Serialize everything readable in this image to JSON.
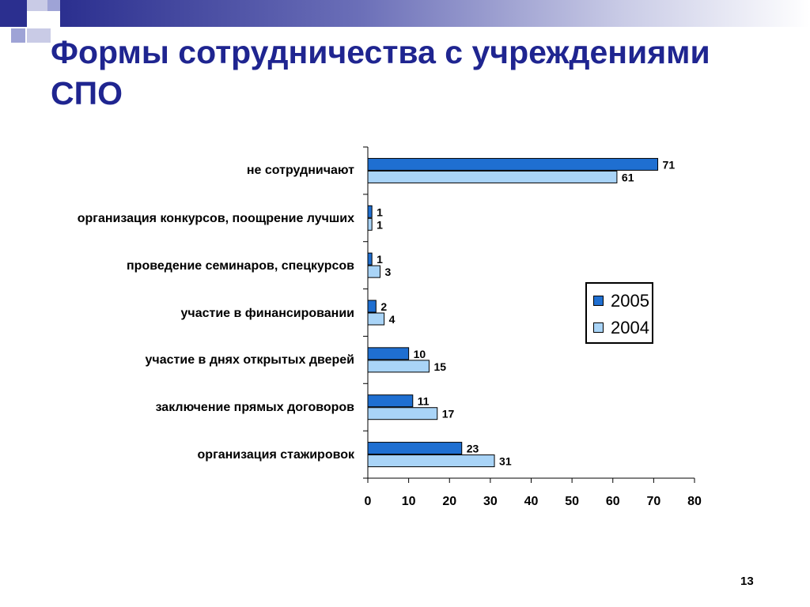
{
  "slide": {
    "title_line1": "Формы сотрудничества с учреждениями",
    "title_line2": "СПО",
    "page_number": "13"
  },
  "colors": {
    "series_2005": "#1f6fd1",
    "series_2004": "#a9d4f7",
    "title": "#1f2590",
    "accent_dark": "#2b2f8f",
    "accent_light": "#9ea3d6"
  },
  "chart_data": {
    "type": "bar",
    "orientation": "horizontal",
    "categories": [
      "не сотрудничают",
      "организация конкурсов, поощрение лучших",
      "проведение семинаров, спецкурсов",
      "участие в финансировании",
      "участие в днях открытых дверей",
      "заключение прямых договоров",
      "организация стажировок"
    ],
    "series": [
      {
        "name": "2005",
        "values": [
          71,
          1,
          1,
          2,
          10,
          11,
          23
        ]
      },
      {
        "name": "2004",
        "values": [
          61,
          1,
          3,
          4,
          15,
          17,
          31
        ]
      }
    ],
    "xlim": [
      0,
      80
    ],
    "xticks": [
      0,
      10,
      20,
      30,
      40,
      50,
      60,
      70,
      80
    ],
    "legend": [
      "2005",
      "2004"
    ],
    "legend_position": "right",
    "data_labels": true,
    "grid": false
  }
}
